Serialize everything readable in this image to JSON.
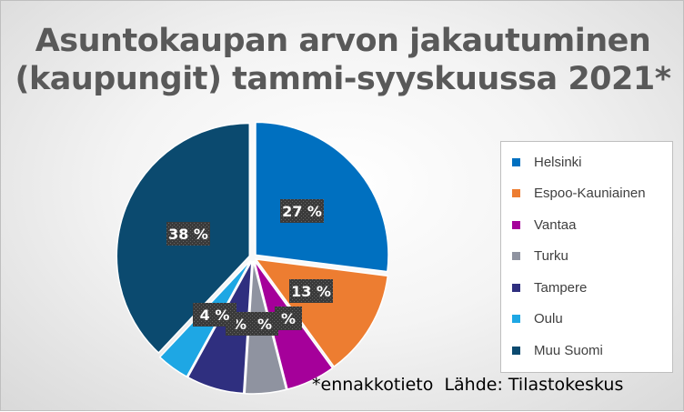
{
  "chart_data": {
    "type": "pie",
    "title_line1": "Asuntokaupan arvon jakautuminen",
    "title_line2": "(kaupungit) tammi-syyskuussa 2021*",
    "categories": [
      "Helsinki",
      "Espoo-Kauniainen",
      "Vantaa",
      "Turku",
      "Tampere",
      "Oulu",
      "Muu Suomi"
    ],
    "values": [
      27,
      13,
      6,
      5,
      7,
      4,
      38
    ],
    "data_labels": [
      "27 %",
      "13 %",
      "%",
      "%",
      "%",
      "4 %",
      "38 %"
    ],
    "colors": [
      "#0070c0",
      "#ed7d31",
      "#a5009a",
      "#8f93a0",
      "#2f2f7f",
      "#1ea7e4",
      "#0b4a6f"
    ],
    "legend_position": "right",
    "footnote": "*ennakkotieto  Lähde: Tilastokeskus"
  }
}
